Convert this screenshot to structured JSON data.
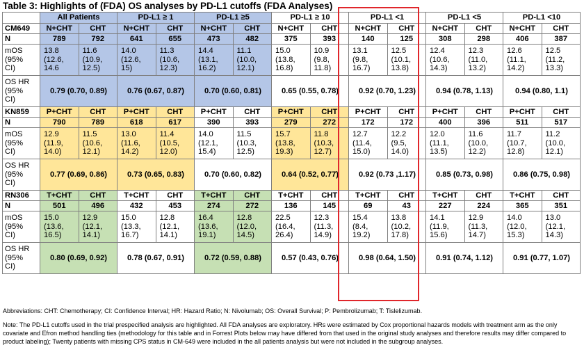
{
  "title": "Table 3: Highlights of (FDA) OS analyses by PD-L1 cutoffs (FDA Analyses)",
  "groups": [
    "All Patients",
    "PD-L1 ≥ 1",
    "PD-L1 ≥5",
    "PD-L1 ≥ 10",
    "PD-L1 <1",
    "PD-L1 <5",
    "PD-L1 <10"
  ],
  "row_labels": {
    "n": "N",
    "mos": [
      "mOS",
      "(95%",
      "CI)"
    ],
    "hr": [
      "OS HR",
      "(95%",
      "CI)"
    ]
  },
  "trials": [
    {
      "name": "CM649",
      "arms": [
        [
          "N+CHT",
          "CHT"
        ],
        [
          "N+CHT",
          "CHT"
        ],
        [
          "N+CHT",
          "CHT"
        ],
        [
          "N+CHT",
          "CHT"
        ],
        [
          "N+CHT",
          "CHT"
        ],
        [
          "N+CHT",
          "CHT"
        ],
        [
          "N+CHT",
          "CHT"
        ]
      ],
      "n": [
        [
          "789",
          "792"
        ],
        [
          "641",
          "655"
        ],
        [
          "473",
          "482"
        ],
        [
          "375",
          "393"
        ],
        [
          "140",
          "125"
        ],
        [
          "308",
          "298"
        ],
        [
          "406",
          "387"
        ]
      ],
      "mos": [
        [
          [
            "13.8",
            "(12.6,",
            "14.6"
          ],
          [
            "11.6",
            "(10.9,",
            "12.5)"
          ]
        ],
        [
          [
            "14.0",
            "(12.6,",
            "15)"
          ],
          [
            "11.3",
            "(10.6,",
            "12.3)"
          ]
        ],
        [
          [
            "14.4",
            "(13.1,",
            "16.2)"
          ],
          [
            "11.1",
            "(10.0,",
            "12.1)"
          ]
        ],
        [
          [
            "15.0",
            "(13.8,",
            "16.8)"
          ],
          [
            "10.9",
            "(9.8,",
            "11.8)"
          ]
        ],
        [
          [
            "13.1",
            "(9.8,",
            "16.7)"
          ],
          [
            "12.5",
            "(10.1,",
            "13.8)"
          ]
        ],
        [
          [
            "12.4",
            "(10.6,",
            "14.3)"
          ],
          [
            "12.3",
            "(11.0,",
            "13.2)"
          ]
        ],
        [
          [
            "12.6",
            "(11.1,",
            "14.2)"
          ],
          [
            "12.5",
            "(11.2,",
            "13.3)"
          ]
        ]
      ],
      "hr": [
        "0.79 (0.70, 0.89)",
        "0.76 (0.67, 0.87)",
        "0.70 (0.60, 0.81)",
        "0.65 (0.55, 0.78)",
        "0.92 (0.70, 1.23)",
        "0.94 (0.78, 1.13)",
        "0.94 (0.80, 1.1)"
      ]
    },
    {
      "name": "KN859",
      "arms": [
        [
          "P+CHT",
          "CHT"
        ],
        [
          "P+CHT",
          "CHT"
        ],
        [
          "P+CHT",
          "CHT"
        ],
        [
          "P+CHT",
          "CHT"
        ],
        [
          "P+CHT",
          "CHT"
        ],
        [
          "P+CHT",
          "CHT"
        ],
        [
          "P+CHT",
          "CHT"
        ]
      ],
      "n": [
        [
          "790",
          "789"
        ],
        [
          "618",
          "617"
        ],
        [
          "390",
          "393"
        ],
        [
          "279",
          "272"
        ],
        [
          "172",
          "172"
        ],
        [
          "400",
          "396"
        ],
        [
          "511",
          "517"
        ]
      ],
      "mos": [
        [
          [
            "12.9",
            "(11.9,",
            "14.0)"
          ],
          [
            "11.5",
            "(10.6,",
            "12.1)"
          ]
        ],
        [
          [
            "13.0",
            "(11.6,",
            "14.2)"
          ],
          [
            "11.4",
            "(10.5,",
            "12.0)"
          ]
        ],
        [
          [
            "14.0",
            "(12.1,",
            "15.4)"
          ],
          [
            "11.5",
            "(10.3,",
            "12.5)"
          ]
        ],
        [
          [
            "15.7",
            "(13.8,",
            "19.3)"
          ],
          [
            "11.8",
            "(10.3,",
            "12.7)"
          ]
        ],
        [
          [
            "12.7",
            "(11.4,",
            "15.0)"
          ],
          [
            "12.2",
            "(9.5,",
            "14.0)"
          ]
        ],
        [
          [
            "12.0",
            "(11.1,",
            "13.5)"
          ],
          [
            "11.6",
            "(10.0,",
            "12.2)"
          ]
        ],
        [
          [
            "11.7",
            "(10.7,",
            "12.8)"
          ],
          [
            "11.2",
            "(10.0,",
            "12.1)"
          ]
        ]
      ],
      "hr": [
        "0.77 (0.69, 0.86)",
        "0.73 (0.65, 0.83)",
        "0.70 (0.60, 0.82)",
        "0.64 (0.52, 0.77)",
        "0.92 (0.73 ,1.17)",
        "0.85 (0.73, 0.98)",
        "0.86 (0.75, 0.98)"
      ]
    },
    {
      "name": "RN306",
      "arms": [
        [
          "T+CHT",
          "CHT"
        ],
        [
          "T+CHT",
          "CHT"
        ],
        [
          "T+CHT",
          "CHT"
        ],
        [
          "T+CHT",
          "CHT"
        ],
        [
          "T+CHT",
          "CHT"
        ],
        [
          "T+CHT",
          "CHT"
        ],
        [
          "T+CHT",
          "CHT"
        ]
      ],
      "n": [
        [
          "501",
          "496"
        ],
        [
          "432",
          "453"
        ],
        [
          "274",
          "272"
        ],
        [
          "136",
          "145"
        ],
        [
          "69",
          "43"
        ],
        [
          "227",
          "224"
        ],
        [
          "365",
          "351"
        ]
      ],
      "mos": [
        [
          [
            "15.0",
            "(13.6,",
            "16.5)"
          ],
          [
            "12.9",
            "(12.1,",
            "14.1)"
          ]
        ],
        [
          [
            "15.0",
            "(13.3,",
            "16.7)"
          ],
          [
            "12.8",
            "(12.1,",
            "14.1)"
          ]
        ],
        [
          [
            "16.4",
            "(13.6,",
            "19.1)"
          ],
          [
            "12.8",
            "(12.0,",
            "14.5)"
          ]
        ],
        [
          [
            "22.5",
            "(16.4,",
            "26.4)"
          ],
          [
            "12.3",
            "(11.3,",
            "14.9)"
          ]
        ],
        [
          [
            "15.4",
            "(8.4,",
            "19.2)"
          ],
          [
            "13.8",
            "(10.2,",
            "17.8)"
          ]
        ],
        [
          [
            "14.1",
            "(11.9,",
            "15.6)"
          ],
          [
            "12.9",
            "(11.3,",
            "14.7)"
          ]
        ],
        [
          [
            "14.0",
            "(12.0,",
            "15.3)"
          ],
          [
            "13.0",
            "(12.1,",
            "14.3)"
          ]
        ]
      ],
      "hr": [
        "0.80 (0.69, 0.92)",
        "0.78 (0.67, 0.91)",
        "0.72 (0.59, 0.88)",
        "0.57 (0.43, 0.76)",
        "0.98 (0.64, 1.50)",
        "0.91 (0.74, 1.12)",
        "0.91 (0.77, 1.07)"
      ]
    }
  ],
  "highlight": {
    "CM649": [
      0,
      1,
      2
    ],
    "KN859": [
      0,
      1,
      3
    ],
    "RN306": [
      0,
      2
    ]
  },
  "colors": {
    "CM649": "#b4c6e7",
    "KN859": "#ffe699",
    "RN306": "#c6e0b4",
    "redbox": "#e0262b"
  },
  "abbreviations": "Abbreviations: CHT: Chemotherapy; CI: Confidence Interval; HR: Hazard Ratio; N: Nivolumab; OS: Overall Survival; P: Pembrolizumab; T: Tislelizumab.",
  "note": "Note: The PD-L1 cutoffs used in the trial prespecified analysis are highlighted. All FDA analyses are exploratory. HRs were estimated by Cox proportional hazards models with treatment arm as the only covariate and Efron method handling ties (methodology for this table and in Forrest Plots below may have differed from that used in the original study analyses and therefore results may differ compared to product labeling); Twenty patients with missing CPS status in CM-649 were included in the all patients analysis but were not included in the subgroup analyses."
}
